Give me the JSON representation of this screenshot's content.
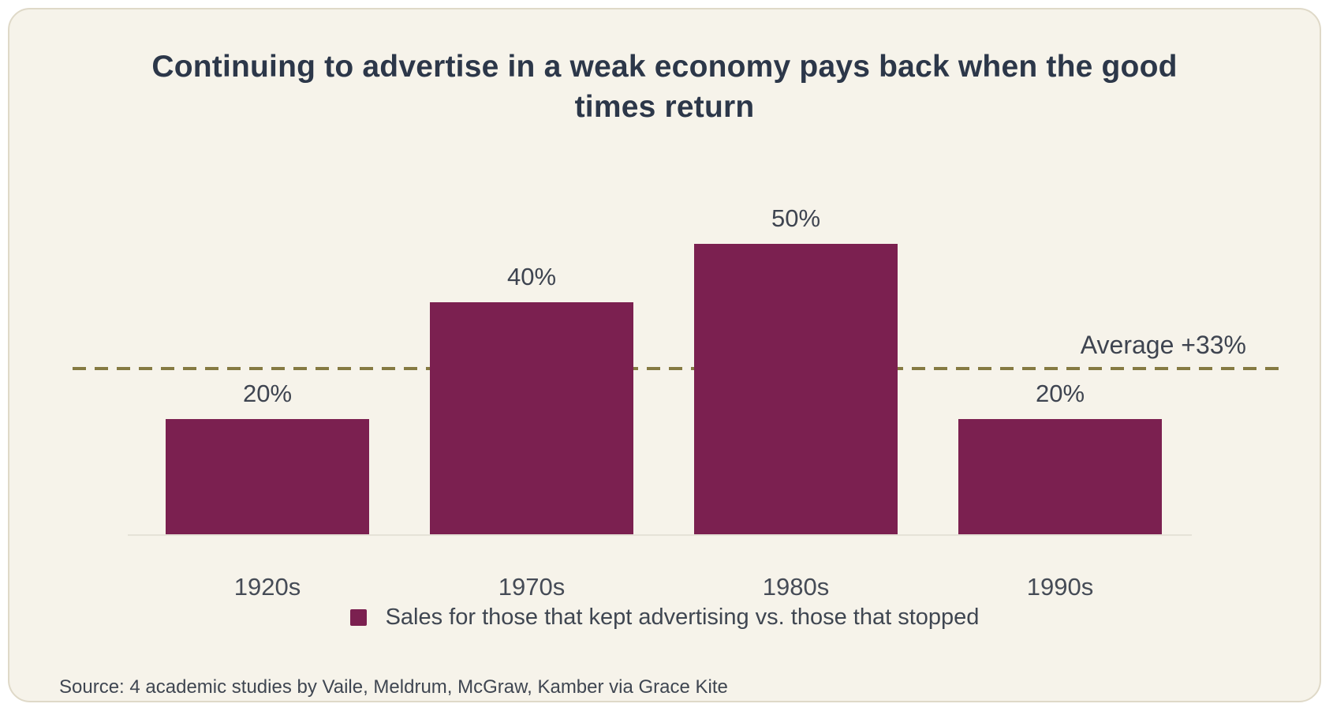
{
  "page": {
    "background_color": "#FFFFFF",
    "card_background_color": "#F6F3EA"
  },
  "chart_data": {
    "type": "bar",
    "title": "Continuing to advertise in a weak economy pays back when the good times return",
    "categories": [
      "1920s",
      "1970s",
      "1980s",
      "1990s"
    ],
    "values": [
      20,
      40,
      50,
      20
    ],
    "value_labels": [
      "20%",
      "40%",
      "50%",
      "20%"
    ],
    "unit": "%",
    "xlabel": "",
    "ylabel": "",
    "ylim": [
      0,
      55
    ],
    "grid": false,
    "bar_color": "#7B2050",
    "text_color": "#3E4450",
    "title_color": "#2C3749",
    "average_line": {
      "value": 33,
      "label": "Average +33%",
      "style": "dashed",
      "color": "#857A42"
    },
    "legend": {
      "position": "bottom",
      "entries": [
        {
          "label": "Sales for those that kept advertising vs. those that stopped",
          "color": "#7B2050"
        }
      ]
    },
    "source": "Source: 4 academic studies by Vaile, Meldrum, McGraw, Kamber via Grace Kite"
  }
}
